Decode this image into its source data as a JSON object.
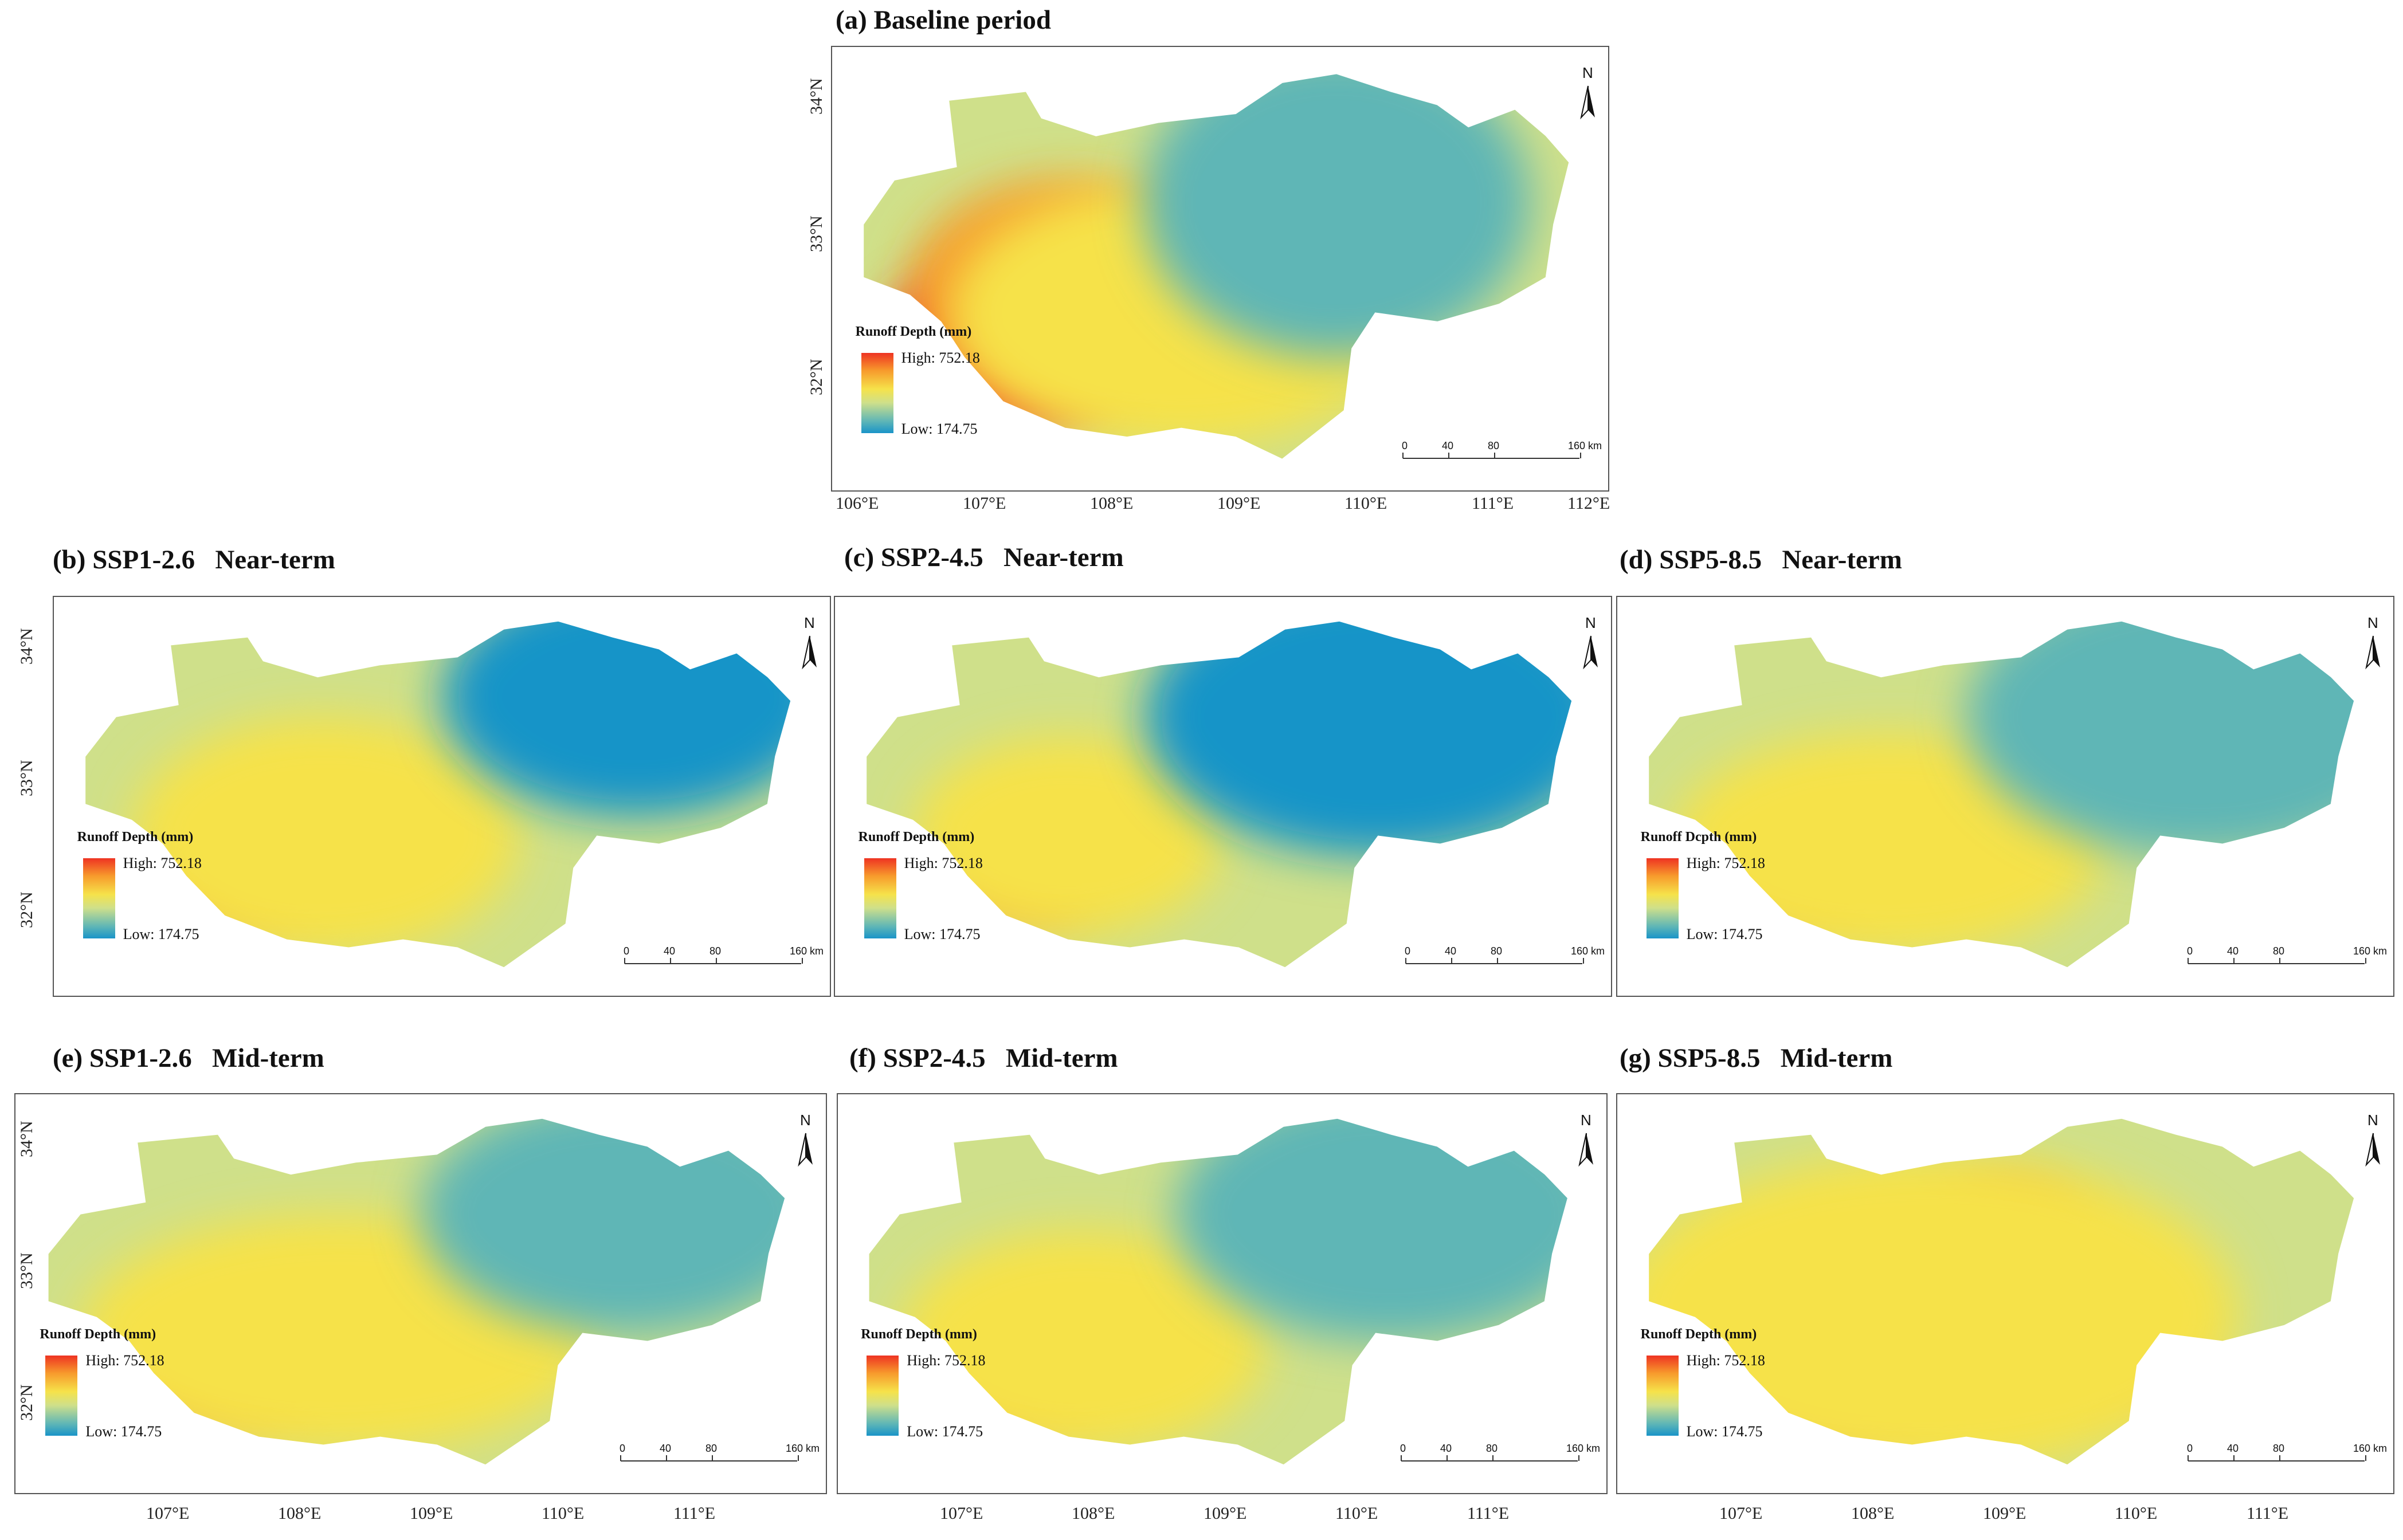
{
  "legend": {
    "title": "Runoff Depth (mm)",
    "title_alt": "Runoff Dcpth (mm)",
    "high": "High: 752.18",
    "low": "Low: 174.75"
  },
  "north_label": "N",
  "scale": {
    "t0": "0",
    "t1": "40",
    "t2": "80",
    "t3": "160 km"
  },
  "lat_ticks": [
    "34°N",
    "33°N",
    "32°N"
  ],
  "lon_ticks_top": [
    "106°E",
    "107°E",
    "108°E",
    "109°E",
    "110°E",
    "111°E",
    "112°E"
  ],
  "lon_ticks_bottom": [
    "107°E",
    "108°E",
    "109°E",
    "110°E",
    "111°E"
  ],
  "panels": [
    {
      "id": "a",
      "title": "(a) Baseline period",
      "scenario": "baseline"
    },
    {
      "id": "b",
      "title": "(b) SSP1-2.6   Near-term",
      "scenario": "ssp126-near"
    },
    {
      "id": "c",
      "title": "(c) SSP2-4.5   Near-term",
      "scenario": "ssp245-near"
    },
    {
      "id": "d",
      "title": "(d) SSP5-8.5   Near-term",
      "scenario": "ssp585-near"
    },
    {
      "id": "e",
      "title": "(e) SSP1-2.6   Mid-term",
      "scenario": "ssp126-mid"
    },
    {
      "id": "f",
      "title": "(f) SSP2-4.5   Mid-term",
      "scenario": "ssp245-mid"
    },
    {
      "id": "g",
      "title": "(g) SSP5-8.5   Mid-term",
      "scenario": "ssp585-mid"
    }
  ],
  "colors": {
    "high": "#ee3322",
    "orange": "#f79a2c",
    "yellow": "#f6e24a",
    "mid": "#cfe08a",
    "teal": "#5fb6b6",
    "low": "#1994c8"
  }
}
